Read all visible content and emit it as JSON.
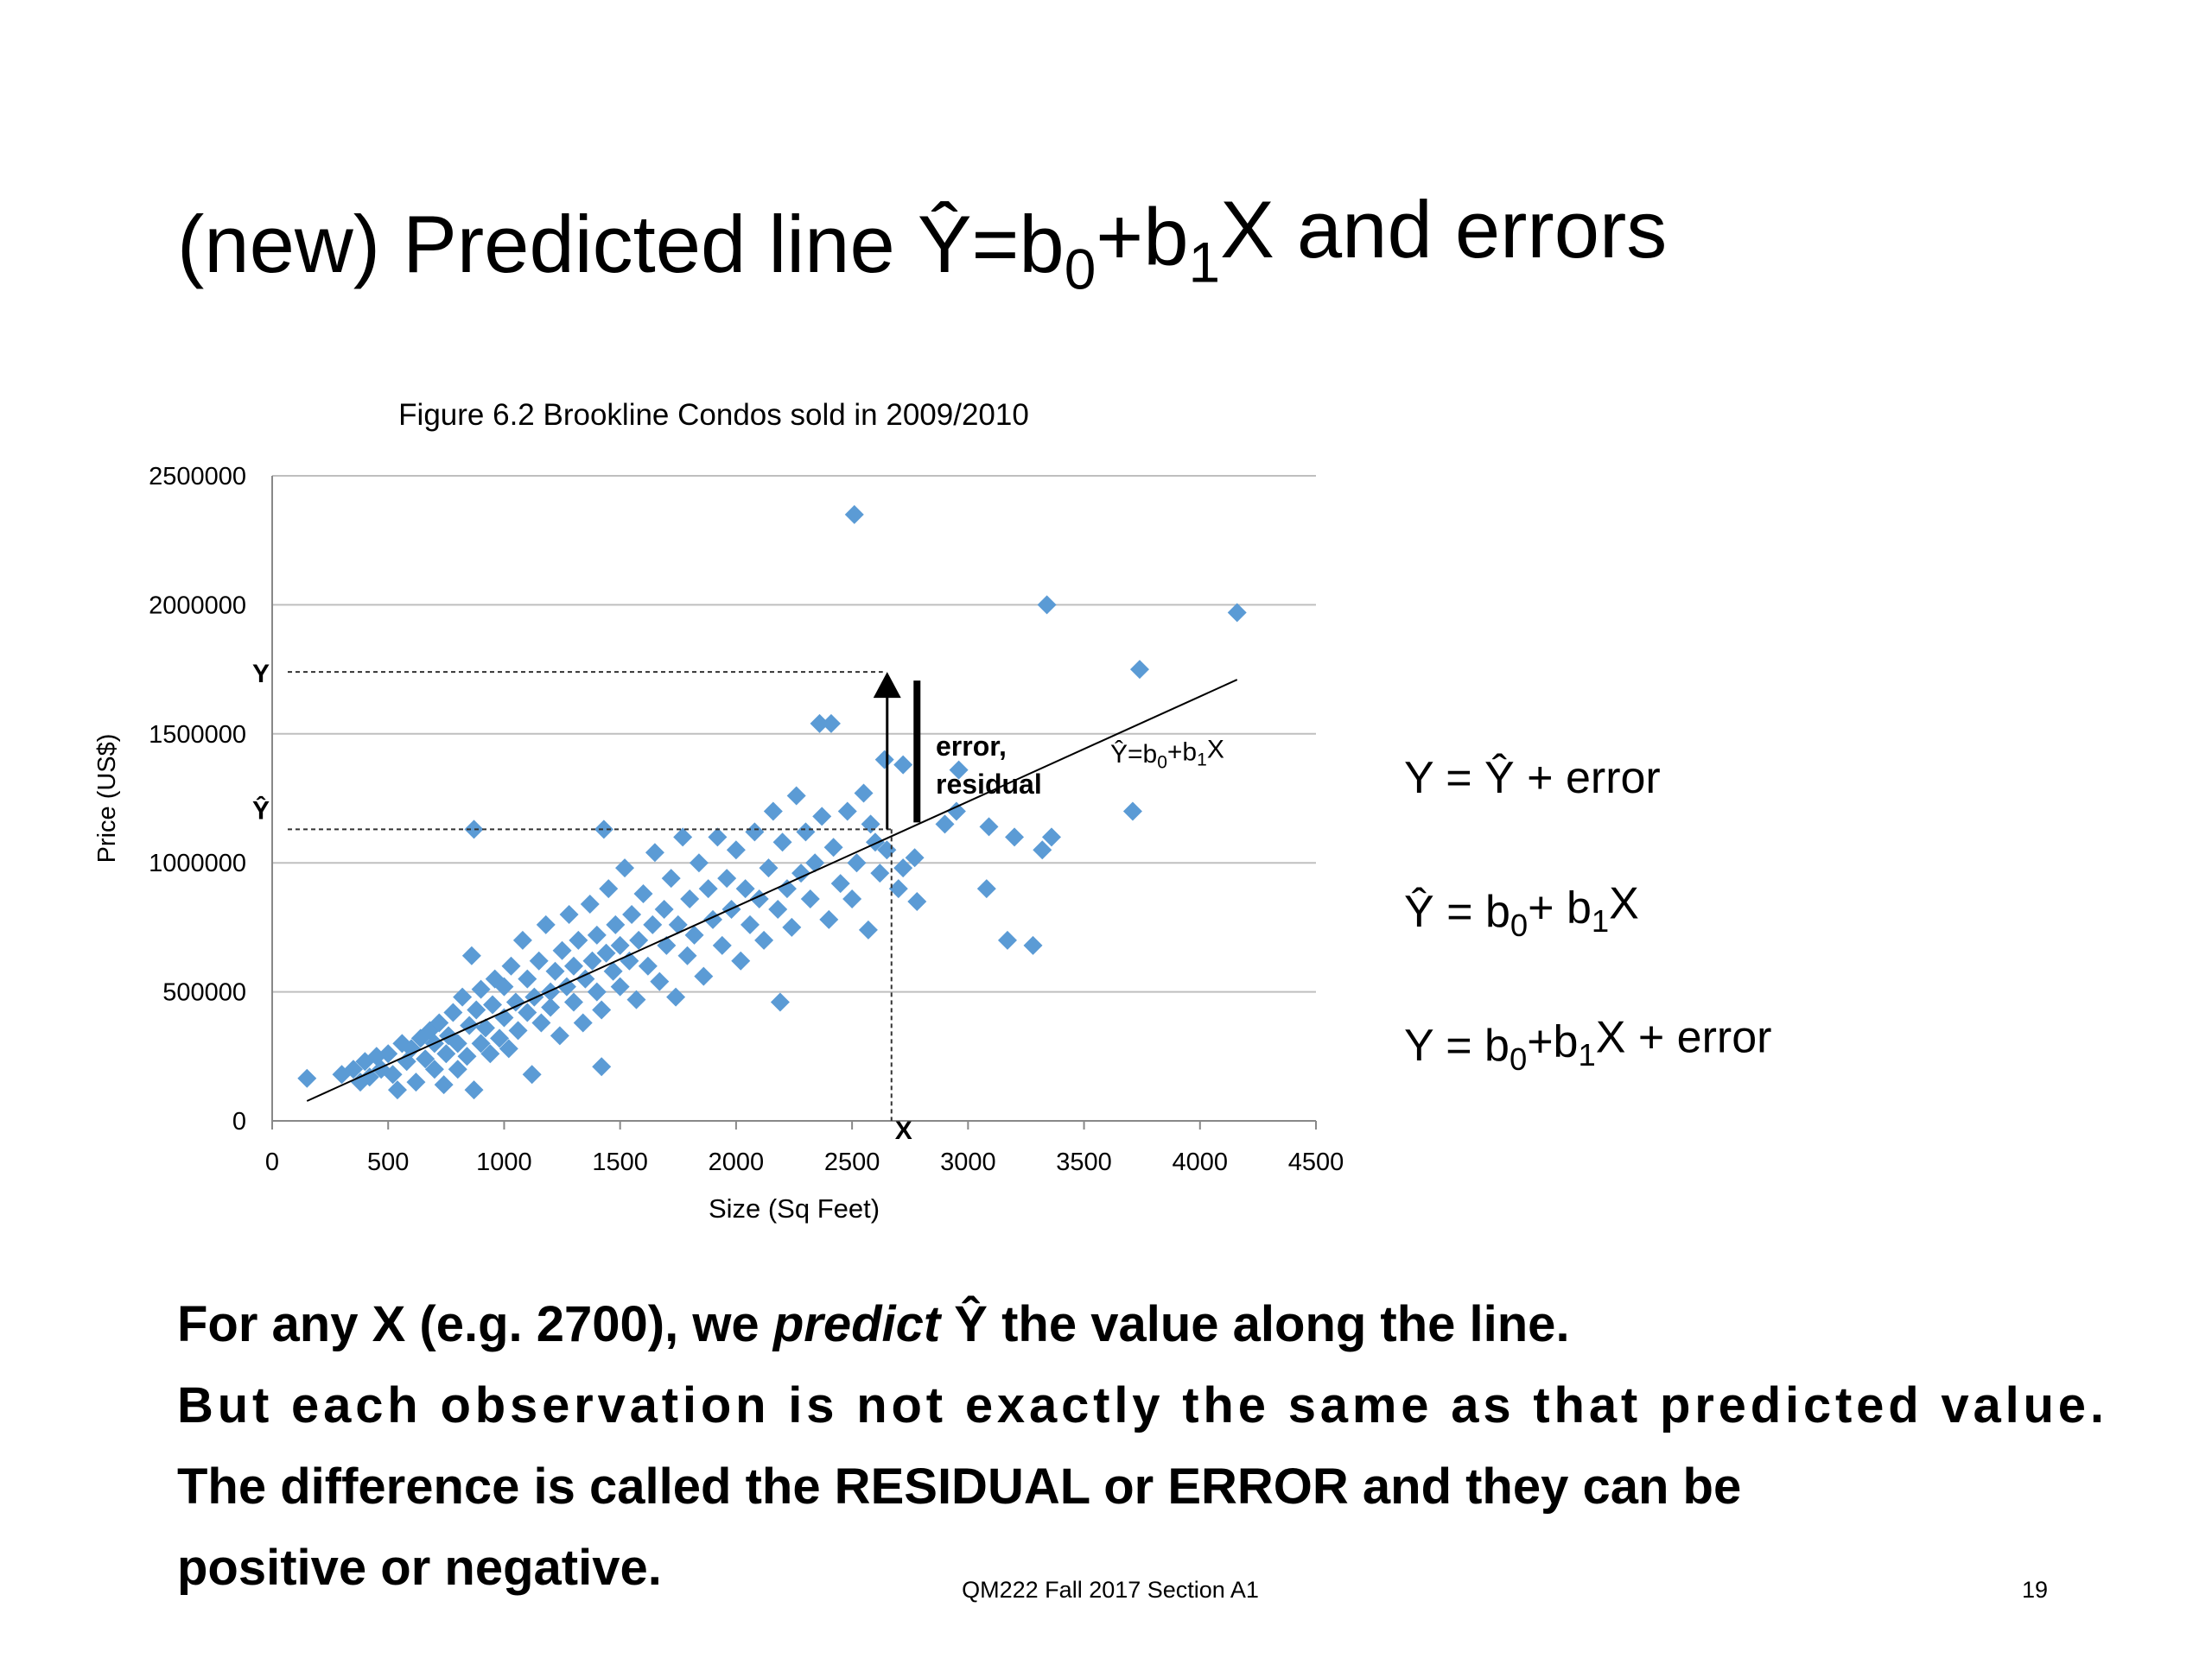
{
  "title": [
    "(new) Predicted line Ŷ=b",
    "0",
    "+b",
    "1",
    "X  and errors"
  ],
  "equations": [
    [
      "Y =  Ŷ + error"
    ],
    [
      "Ŷ = b",
      "0",
      "+ b",
      "1",
      "X"
    ],
    [
      "Y = b",
      "0",
      "+b",
      "1",
      "X + error"
    ]
  ],
  "body": [
    [
      "For any X (e.g. 2700), we ",
      "predict",
      " Ŷ the value along the line."
    ],
    [
      "But each observation is not exactly the same as that predicted value."
    ],
    [
      "The difference is called the RESIDUAL or ERROR and they can be"
    ],
    [
      "positive or negative."
    ]
  ],
  "footer": "QM222 Fall 2017 Section A1",
  "page_number": "19",
  "chart_data": {
    "type": "scatter",
    "title": "Figure 6.2 Brookline Condos sold in 2009/2010",
    "x_label": "Size (Sq Feet)",
    "y_label": "Price (US$)",
    "color": "#5b9bd5",
    "xlim": [
      0,
      4500
    ],
    "xticks": [
      0,
      500,
      1000,
      1500,
      2000,
      2500,
      3000,
      3500,
      4000,
      4500
    ],
    "ylim": [
      0,
      2500000
    ],
    "yticks": [
      0,
      500000,
      1000000,
      1500000,
      2000000,
      2500000
    ],
    "grid": true,
    "x": [
      300,
      350,
      380,
      400,
      420,
      450,
      470,
      500,
      520,
      540,
      560,
      580,
      600,
      620,
      640,
      660,
      680,
      700,
      700,
      720,
      740,
      750,
      760,
      780,
      800,
      800,
      820,
      840,
      850,
      860,
      870,
      880,
      900,
      900,
      920,
      940,
      950,
      960,
      980,
      1000,
      1000,
      1020,
      1030,
      1050,
      1060,
      1080,
      1100,
      1100,
      1120,
      1130,
      1150,
      1160,
      1180,
      1200,
      1200,
      1220,
      1240,
      1250,
      1270,
      1280,
      1300,
      1300,
      1320,
      1340,
      1350,
      1370,
      1380,
      1400,
      1400,
      1420,
      1440,
      1450,
      1470,
      1480,
      1500,
      1500,
      1520,
      1540,
      1550,
      1570,
      1580,
      1600,
      1620,
      1640,
      1650,
      1670,
      1690,
      1700,
      1720,
      1740,
      1750,
      1770,
      1790,
      1800,
      1820,
      1840,
      1860,
      1880,
      1900,
      1920,
      1940,
      1960,
      1980,
      2000,
      2020,
      2040,
      2060,
      2080,
      2100,
      2120,
      2140,
      2160,
      2180,
      2200,
      2220,
      2240,
      2260,
      2280,
      2300,
      2320,
      2340,
      2370,
      2400,
      2420,
      2450,
      2480,
      2500,
      2520,
      2550,
      2580,
      2600,
      2620,
      2650,
      2700,
      2720,
      2510,
      3340,
      4160,
      3740,
      3710,
      2360,
      2410,
      870,
      1430,
      1420,
      150,
      3170,
      3280,
      3080,
      3360,
      3320,
      2960,
      3090,
      2770,
      2780,
      2190,
      2570,
      2640,
      2720,
      2950,
      3200,
      2900
    ],
    "values": [
      180000,
      200000,
      150000,
      230000,
      170000,
      250000,
      200000,
      260000,
      180000,
      120000,
      300000,
      230000,
      280000,
      150000,
      320000,
      240000,
      350000,
      200000,
      300000,
      380000,
      140000,
      260000,
      330000,
      420000,
      200000,
      300000,
      480000,
      250000,
      370000,
      640000,
      120000,
      430000,
      300000,
      510000,
      360000,
      260000,
      450000,
      550000,
      320000,
      400000,
      520000,
      280000,
      600000,
      460000,
      350000,
      700000,
      420000,
      550000,
      180000,
      480000,
      620000,
      380000,
      760000,
      500000,
      440000,
      580000,
      330000,
      660000,
      520000,
      800000,
      460000,
      600000,
      700000,
      380000,
      550000,
      840000,
      620000,
      500000,
      720000,
      430000,
      650000,
      900000,
      580000,
      760000,
      520000,
      680000,
      980000,
      620000,
      800000,
      470000,
      700000,
      880000,
      600000,
      760000,
      1040000,
      540000,
      820000,
      680000,
      940000,
      480000,
      760000,
      1100000,
      640000,
      860000,
      720000,
      1000000,
      560000,
      900000,
      780000,
      1100000,
      680000,
      940000,
      820000,
      1050000,
      620000,
      900000,
      760000,
      1120000,
      860000,
      700000,
      980000,
      1200000,
      820000,
      1080000,
      900000,
      750000,
      1260000,
      960000,
      1120000,
      860000,
      1000000,
      1180000,
      780000,
      1060000,
      920000,
      1200000,
      860000,
      1000000,
      1270000,
      1150000,
      1080000,
      960000,
      1050000,
      900000,
      980000,
      2350000,
      2000000,
      1970000,
      1750000,
      1200000,
      1540000,
      1540000,
      1130000,
      1130000,
      210000,
      165000,
      700000,
      680000,
      900000,
      1100000,
      1050000,
      1360000,
      1140000,
      1020000,
      850000,
      460000,
      740000,
      1400000,
      1380000,
      1200000,
      1100000,
      1150000
    ],
    "fit_line": {
      "x": [
        150,
        4160
      ],
      "values": [
        77000,
        1710000
      ],
      "label": [
        "Ŷ=b",
        "0",
        "+b",
        "1",
        "X"
      ]
    },
    "annotation": {
      "x_value": 2670,
      "x_label": "X",
      "y_observed": 1740000,
      "y_observed_label": "Y",
      "y_predicted": 1130000,
      "y_predicted_label": "Ŷ",
      "error_x": 2780,
      "error_label": [
        "error,",
        "residual"
      ]
    }
  }
}
